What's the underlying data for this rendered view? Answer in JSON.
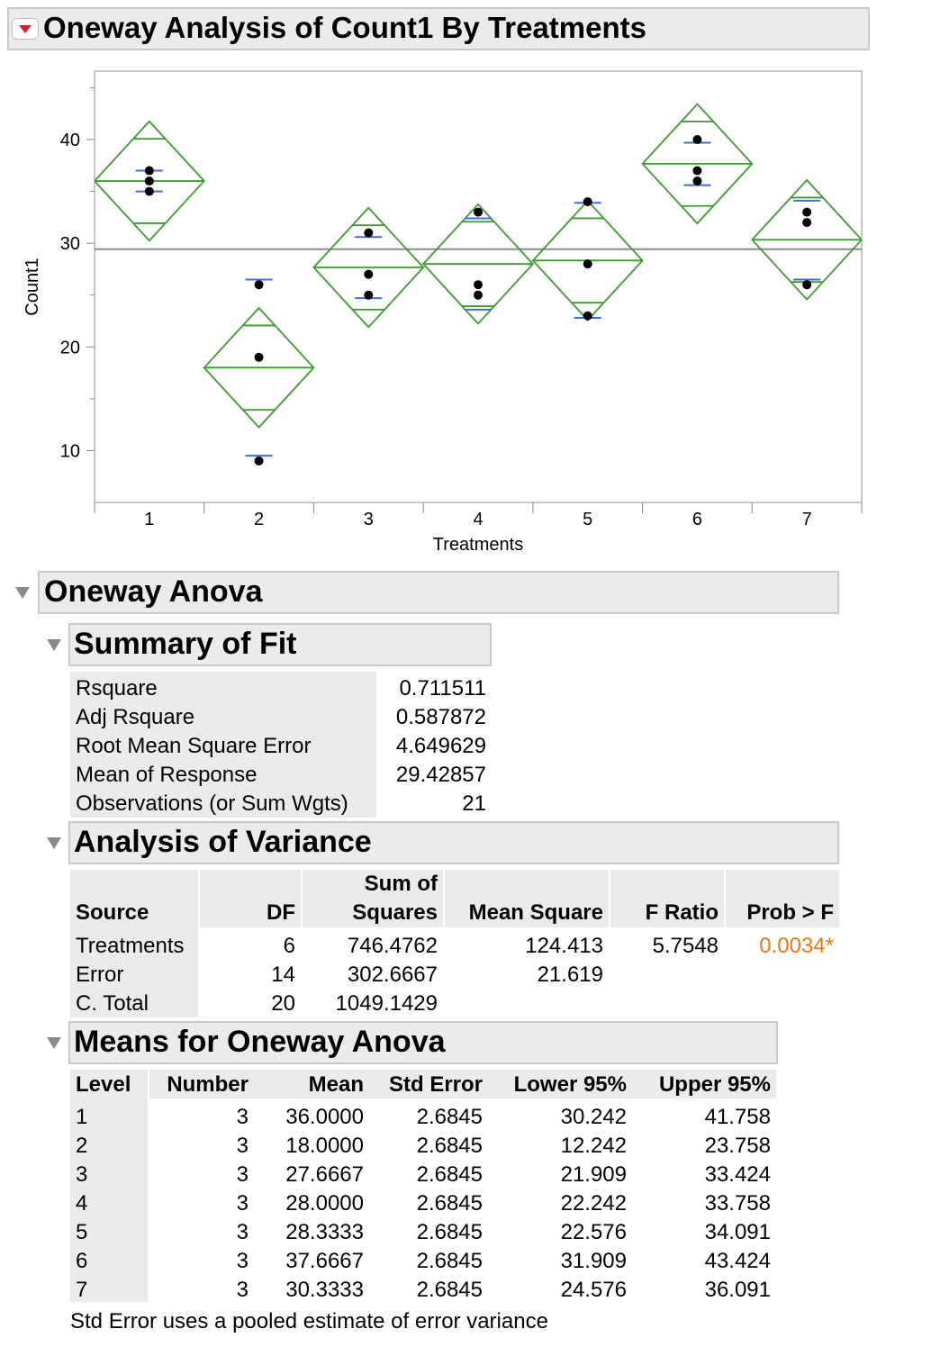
{
  "report": {
    "title": "Oneway Analysis of Count1 By Treatments"
  },
  "chart_data": {
    "type": "scatter",
    "xlabel": "Treatments",
    "ylabel": "Count1",
    "categories": [
      "1",
      "2",
      "3",
      "4",
      "5",
      "6",
      "7"
    ],
    "ylim": [
      5,
      46.6
    ],
    "yticks": [
      10,
      20,
      30,
      40
    ],
    "grand_mean": 29.42857,
    "points": [
      {
        "x": "1",
        "y": 37
      },
      {
        "x": "1",
        "y": 36
      },
      {
        "x": "1",
        "y": 35
      },
      {
        "x": "2",
        "y": 26
      },
      {
        "x": "2",
        "y": 19
      },
      {
        "x": "2",
        "y": 9
      },
      {
        "x": "3",
        "y": 31
      },
      {
        "x": "3",
        "y": 27
      },
      {
        "x": "3",
        "y": 25
      },
      {
        "x": "4",
        "y": 33
      },
      {
        "x": "4",
        "y": 26
      },
      {
        "x": "4",
        "y": 25
      },
      {
        "x": "5",
        "y": 34
      },
      {
        "x": "5",
        "y": 28
      },
      {
        "x": "5",
        "y": 23
      },
      {
        "x": "6",
        "y": 40
      },
      {
        "x": "6",
        "y": 37
      },
      {
        "x": "6",
        "y": 36
      },
      {
        "x": "7",
        "y": 33
      },
      {
        "x": "7",
        "y": 32
      },
      {
        "x": "7",
        "y": 26
      }
    ],
    "means_diamonds": [
      {
        "level": "1",
        "mean": 36.0,
        "lower95": 30.242,
        "upper95": 41.758
      },
      {
        "level": "2",
        "mean": 18.0,
        "lower95": 12.242,
        "upper95": 23.758
      },
      {
        "level": "3",
        "mean": 27.6667,
        "lower95": 21.909,
        "upper95": 33.424
      },
      {
        "level": "4",
        "mean": 28.0,
        "lower95": 22.242,
        "upper95": 33.758
      },
      {
        "level": "5",
        "mean": 28.3333,
        "lower95": 22.576,
        "upper95": 34.091
      },
      {
        "level": "6",
        "mean": 37.6667,
        "lower95": 31.909,
        "upper95": 43.424
      },
      {
        "level": "7",
        "mean": 30.3333,
        "lower95": 24.576,
        "upper95": 36.091
      }
    ],
    "std_dev_lines": [
      {
        "level": "1",
        "upper": 37.0,
        "lower": 35.0
      },
      {
        "level": "2",
        "upper": 26.5,
        "lower": 9.5
      },
      {
        "level": "3",
        "upper": 30.6,
        "lower": 24.7
      },
      {
        "level": "4",
        "upper": 32.4,
        "lower": 23.6
      },
      {
        "level": "5",
        "upper": 33.9,
        "lower": 22.8
      },
      {
        "level": "6",
        "upper": 39.7,
        "lower": 35.6
      },
      {
        "level": "7",
        "upper": 34.1,
        "lower": 26.5
      }
    ],
    "colors": {
      "diamond": "#3f9a32",
      "stddev": "#3b6fe0",
      "grand_mean": "#8c8c8c",
      "point": "#000000"
    }
  },
  "anova": {
    "title": "Oneway Anova",
    "summary_fit": {
      "title": "Summary of Fit",
      "rows": [
        {
          "label": "Rsquare",
          "value": "0.711511"
        },
        {
          "label": "Adj Rsquare",
          "value": "0.587872"
        },
        {
          "label": "Root Mean Square Error",
          "value": "4.649629"
        },
        {
          "label": "Mean of Response",
          "value": "29.42857"
        },
        {
          "label": "Observations (or Sum Wgts)",
          "value": "21"
        }
      ]
    },
    "aov": {
      "title": "Analysis of Variance",
      "headers": {
        "source": "Source",
        "df": "DF",
        "ss_top": "Sum of",
        "ss_bottom": "Squares",
        "ms": "Mean Square",
        "f": "F Ratio",
        "p": "Prob > F"
      },
      "rows": [
        {
          "source": "Treatments",
          "df": "6",
          "ss": "746.4762",
          "ms": "124.413",
          "f": "5.7548",
          "p": "0.0034*"
        },
        {
          "source": "Error",
          "df": "14",
          "ss": "302.6667",
          "ms": "21.619",
          "f": "",
          "p": ""
        },
        {
          "source": "C. Total",
          "df": "20",
          "ss": "1049.1429",
          "ms": "",
          "f": "",
          "p": ""
        }
      ]
    },
    "means": {
      "title": "Means for Oneway Anova",
      "headers": [
        "Level",
        "Number",
        "Mean",
        "Std Error",
        "Lower 95%",
        "Upper 95%"
      ],
      "rows": [
        [
          "1",
          "3",
          "36.0000",
          "2.6845",
          "30.242",
          "41.758"
        ],
        [
          "2",
          "3",
          "18.0000",
          "2.6845",
          "12.242",
          "23.758"
        ],
        [
          "3",
          "3",
          "27.6667",
          "2.6845",
          "21.909",
          "33.424"
        ],
        [
          "4",
          "3",
          "28.0000",
          "2.6845",
          "22.242",
          "33.758"
        ],
        [
          "5",
          "3",
          "28.3333",
          "2.6845",
          "22.576",
          "34.091"
        ],
        [
          "6",
          "3",
          "37.6667",
          "2.6845",
          "31.909",
          "43.424"
        ],
        [
          "7",
          "3",
          "30.3333",
          "2.6845",
          "24.576",
          "36.091"
        ]
      ],
      "footnote": "Std Error uses a pooled estimate of error variance"
    }
  }
}
